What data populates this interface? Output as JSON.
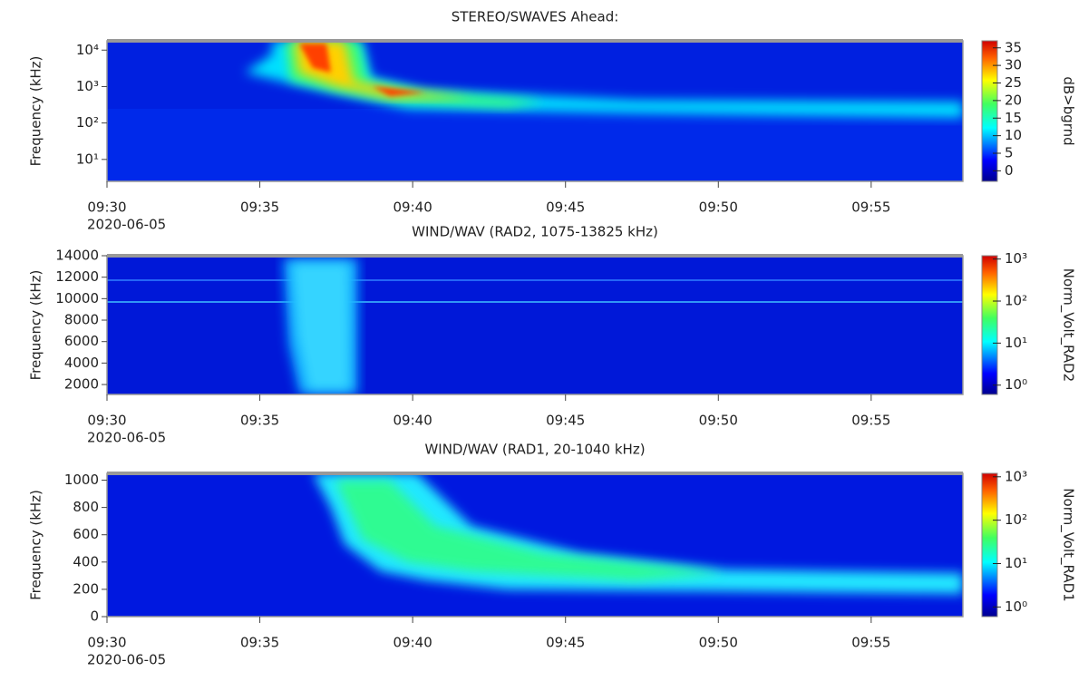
{
  "chart_data": [
    {
      "type": "spectrogram",
      "title": "STEREO/SWAVES  Ahead:",
      "ylabel": "Frequency (kHz)",
      "yscale": "log",
      "ylim": [
        2.5,
        18000
      ],
      "yticks": [
        {
          "value": 10,
          "label": "10¹"
        },
        {
          "value": 100,
          "label": "10²"
        },
        {
          "value": 1000,
          "label": "10³"
        },
        {
          "value": 10000,
          "label": "10⁴"
        }
      ],
      "xlim": [
        "09:30",
        "09:58"
      ],
      "xticks": [
        "09:30",
        "09:35",
        "09:40",
        "09:45",
        "09:50",
        "09:55"
      ],
      "x_date": "2020-06-05",
      "colorbar": {
        "label": "dB>bgrnd",
        "scale": "linear",
        "lim": [
          -3,
          37
        ],
        "ticks": [
          0,
          5,
          10,
          15,
          20,
          25,
          30,
          35
        ]
      }
    },
    {
      "type": "spectrogram",
      "title": "WIND/WAV  (RAD2, 1075-13825 kHz)",
      "ylabel": "Frequency (kHz)",
      "yscale": "linear",
      "ylim": [
        1075,
        14000
      ],
      "yticks": [
        2000,
        4000,
        6000,
        8000,
        10000,
        12000,
        14000
      ],
      "xlim": [
        "09:30",
        "09:58"
      ],
      "xticks": [
        "09:30",
        "09:35",
        "09:40",
        "09:45",
        "09:50",
        "09:55"
      ],
      "x_date": "2020-06-05",
      "colorbar": {
        "label": "Norm_Volt_RAD2",
        "scale": "log",
        "lim": [
          0.6,
          1200
        ],
        "ticks": [
          {
            "value": 1,
            "label": "10⁰"
          },
          {
            "value": 10,
            "label": "10¹"
          },
          {
            "value": 100,
            "label": "10²"
          },
          {
            "value": 1000,
            "label": "10³"
          }
        ]
      }
    },
    {
      "type": "spectrogram",
      "title": "WIND/WAV   (RAD1, 20-1040 kHz)",
      "ylabel": "Frequency (kHz)",
      "yscale": "linear",
      "ylim": [
        0,
        1050
      ],
      "yticks": [
        0,
        200,
        400,
        600,
        800,
        1000
      ],
      "xlim": [
        "09:30",
        "09:58"
      ],
      "xticks": [
        "09:30",
        "09:35",
        "09:40",
        "09:45",
        "09:50",
        "09:55"
      ],
      "x_date": "2020-06-05",
      "colorbar": {
        "label": "Norm_Volt_RAD1",
        "scale": "log",
        "lim": [
          0.6,
          1200
        ],
        "ticks": [
          {
            "value": 1,
            "label": "10⁰"
          },
          {
            "value": 10,
            "label": "10¹"
          },
          {
            "value": 100,
            "label": "10²"
          },
          {
            "value": 1000,
            "label": "10³"
          }
        ]
      }
    }
  ]
}
